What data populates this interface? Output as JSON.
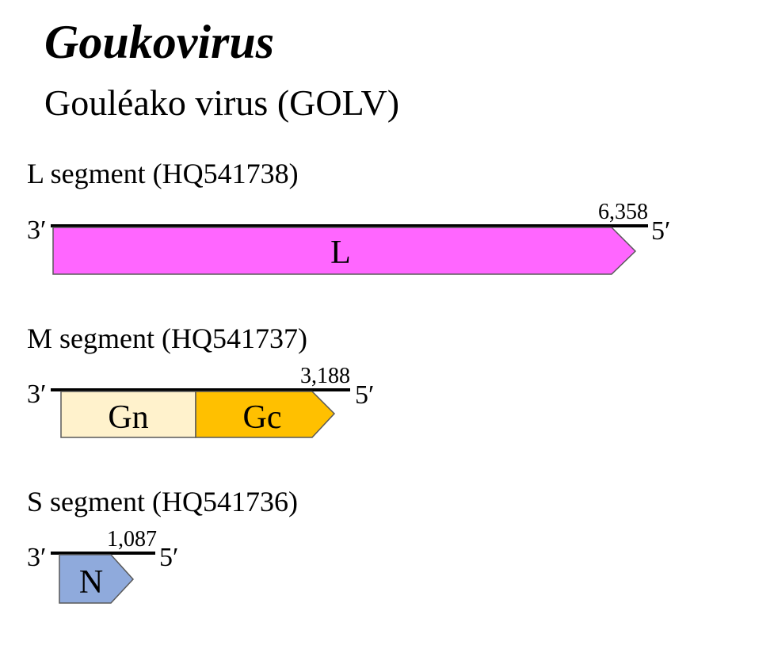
{
  "title": {
    "genus": "Goukovirus",
    "virus": "Gouléako virus (GOLV)"
  },
  "segments": {
    "L": {
      "label": "L segment (HQ541738)",
      "end3": "3′",
      "end5": "5′",
      "length": "6,358",
      "genes": [
        {
          "name": "L",
          "color": "#ff66ff"
        }
      ]
    },
    "M": {
      "label": "M segment (HQ541737)",
      "end3": "3′",
      "end5": "5′",
      "length": "3,188",
      "genes": [
        {
          "name": "Gn",
          "color": "#fff2cc"
        },
        {
          "name": "Gc",
          "color": "#ffc000"
        }
      ]
    },
    "S": {
      "label": "S segment (HQ541736)",
      "end3": "3′",
      "end5": "5′",
      "length": "1,087",
      "genes": [
        {
          "name": "N",
          "color": "#8faadc"
        }
      ]
    }
  }
}
